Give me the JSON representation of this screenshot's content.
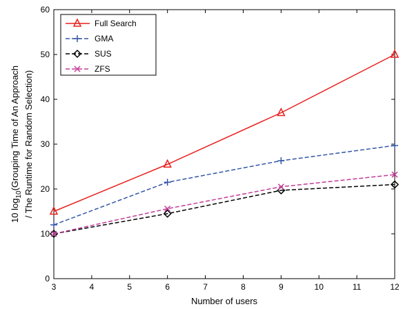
{
  "chart_data": {
    "type": "line",
    "x": [
      3,
      6,
      9,
      12
    ],
    "xlim": [
      3,
      12
    ],
    "ylim": [
      0,
      60
    ],
    "xticks": [
      "3",
      "4",
      "5",
      "6",
      "7",
      "8",
      "9",
      "10",
      "11",
      "12"
    ],
    "yticks": [
      "0",
      "10",
      "20",
      "30",
      "40",
      "50",
      "60"
    ],
    "xlabel": "Number of users",
    "ylabel": {
      "line1_prefix": "10 log",
      "line1_subscript": "10",
      "line1_suffix": "(Grouping Time of An Approach",
      "line2": "/ The Runtime for Random Selection)"
    },
    "grid": false,
    "legend_position": "top-left",
    "series": [
      {
        "name": "Full Search",
        "values": [
          15.0,
          25.5,
          37.0,
          50.0
        ],
        "color": "#e8201d",
        "marker": "triangle",
        "dash": "solid"
      },
      {
        "name": "GMA",
        "values": [
          12.0,
          21.5,
          26.3,
          29.7
        ],
        "color": "#3355a6",
        "marker": "plus",
        "dash": "dashed"
      },
      {
        "name": "SUS",
        "values": [
          10.0,
          14.5,
          19.7,
          21.0
        ],
        "color": "#000000",
        "marker": "diamond",
        "dash": "dashed"
      },
      {
        "name": "ZFS",
        "values": [
          10.0,
          15.6,
          20.5,
          23.2
        ],
        "color": "#c23b97",
        "marker": "x",
        "dash": "dashed"
      }
    ]
  }
}
